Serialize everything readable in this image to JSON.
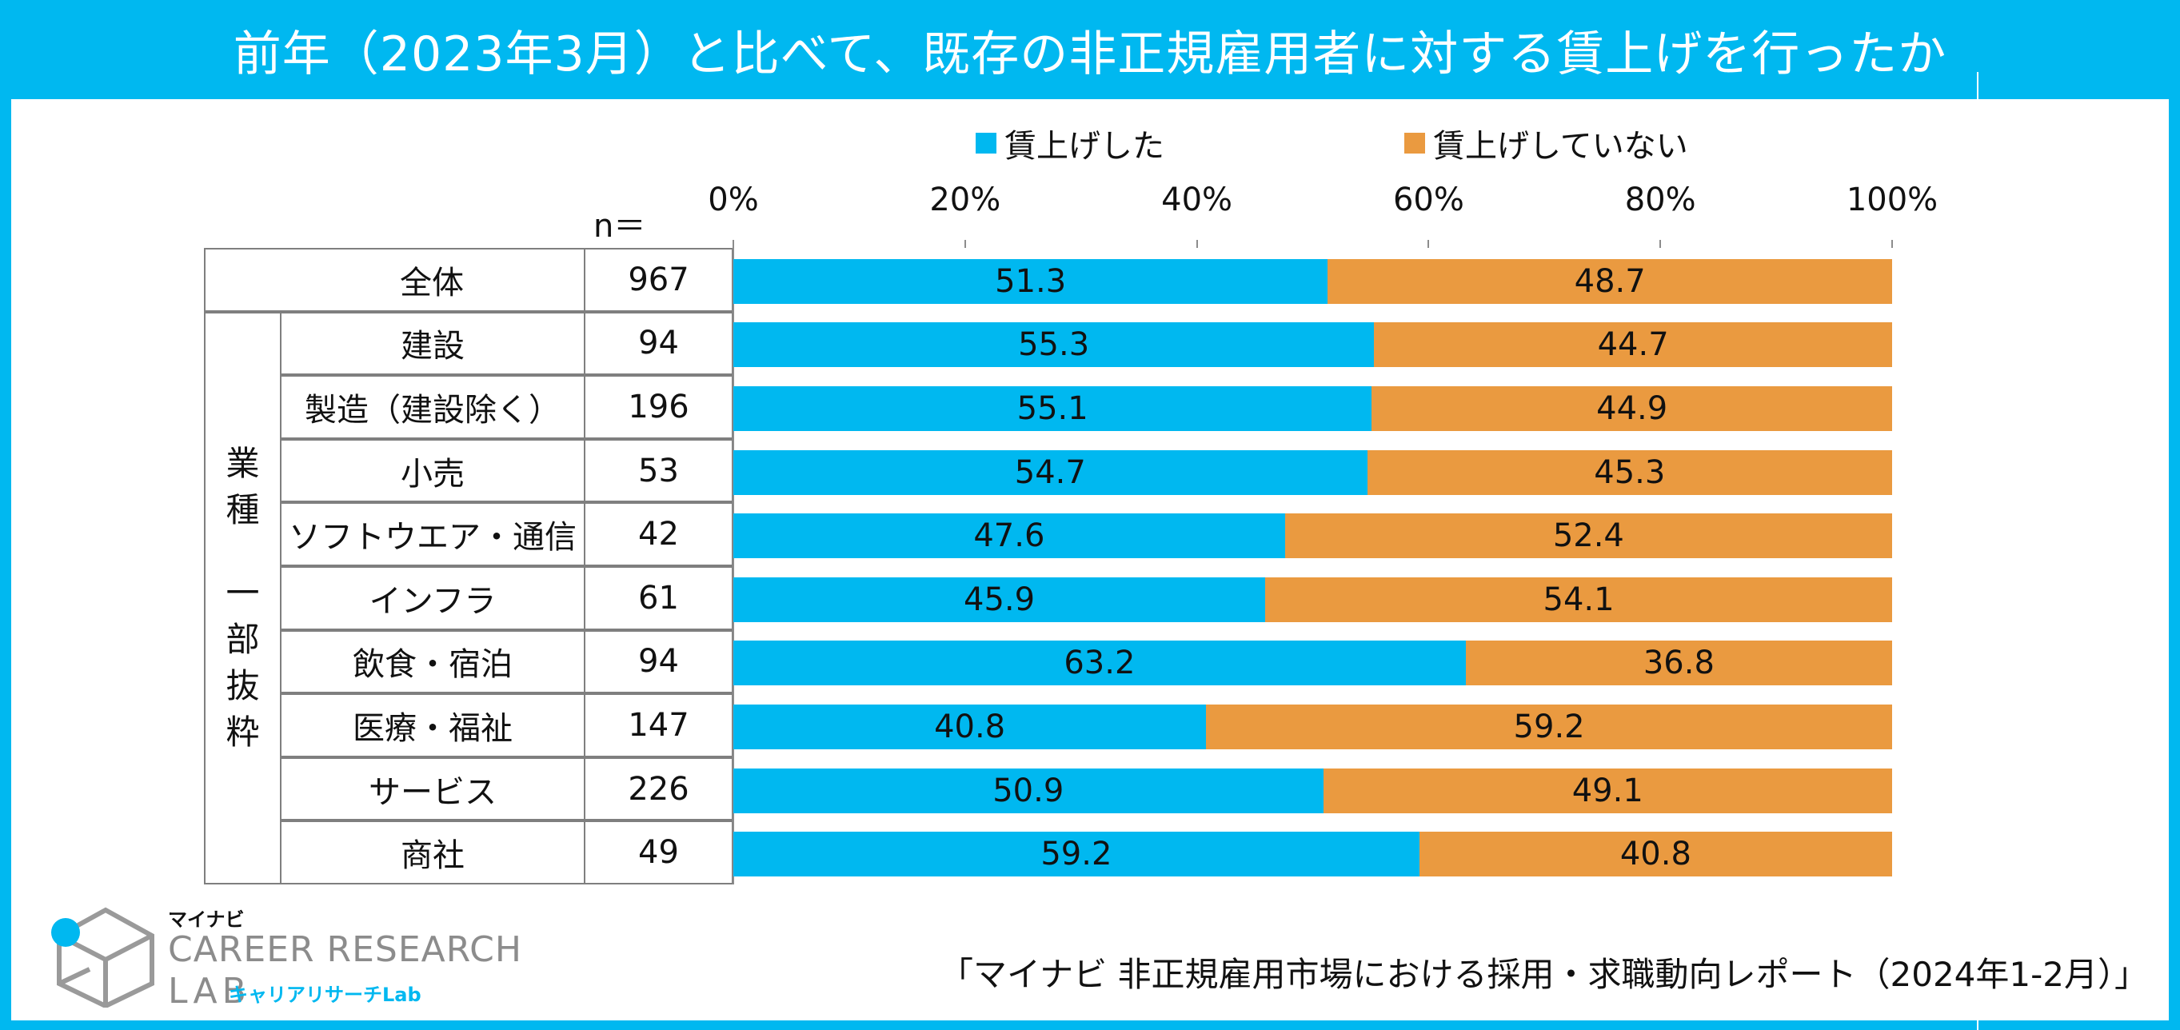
{
  "title": "前年（2023年3月）と比べて、既存の非正規雇用者に対する賃上げを行ったか",
  "legend": [
    {
      "label": "賃上げした",
      "color": "#00b8f0"
    },
    {
      "label": "賃上げしていない",
      "color": "#ea9a40"
    }
  ],
  "n_header": "n＝",
  "group_label": "業種　一部抜粋",
  "axis_ticks": [
    "0%",
    "20%",
    "40%",
    "60%",
    "80%",
    "100%"
  ],
  "source": "「マイナビ 非正規雇用市場における採用・求職動向レポート（2024年1-2月）」",
  "logo": {
    "brand": "マイナビ",
    "line1": "CAREER RESEARCH",
    "line2": "LAB",
    "jp": "キャリアリサーチLab"
  },
  "chart_data": {
    "type": "bar",
    "orientation": "horizontal",
    "stacked": true,
    "percent": true,
    "xlim": [
      0,
      100
    ],
    "categories": [
      "全体",
      "建設",
      "製造（建設除く）",
      "小売",
      "ソフトウエア・通信",
      "インフラ",
      "飲食・宿泊",
      "医療・福祉",
      "サービス",
      "商社"
    ],
    "n": [
      "967",
      "94",
      "196",
      "53",
      "42",
      "61",
      "94",
      "147",
      "226",
      "49"
    ],
    "series": [
      {
        "name": "賃上げした",
        "color": "#00b8f0",
        "values": [
          51.3,
          55.3,
          55.1,
          54.7,
          47.6,
          45.9,
          63.2,
          40.8,
          50.9,
          59.2
        ]
      },
      {
        "name": "賃上げしていない",
        "color": "#ea9a40",
        "values": [
          48.7,
          44.7,
          44.9,
          45.3,
          52.4,
          54.1,
          36.8,
          59.2,
          49.1,
          40.8
        ]
      }
    ]
  }
}
